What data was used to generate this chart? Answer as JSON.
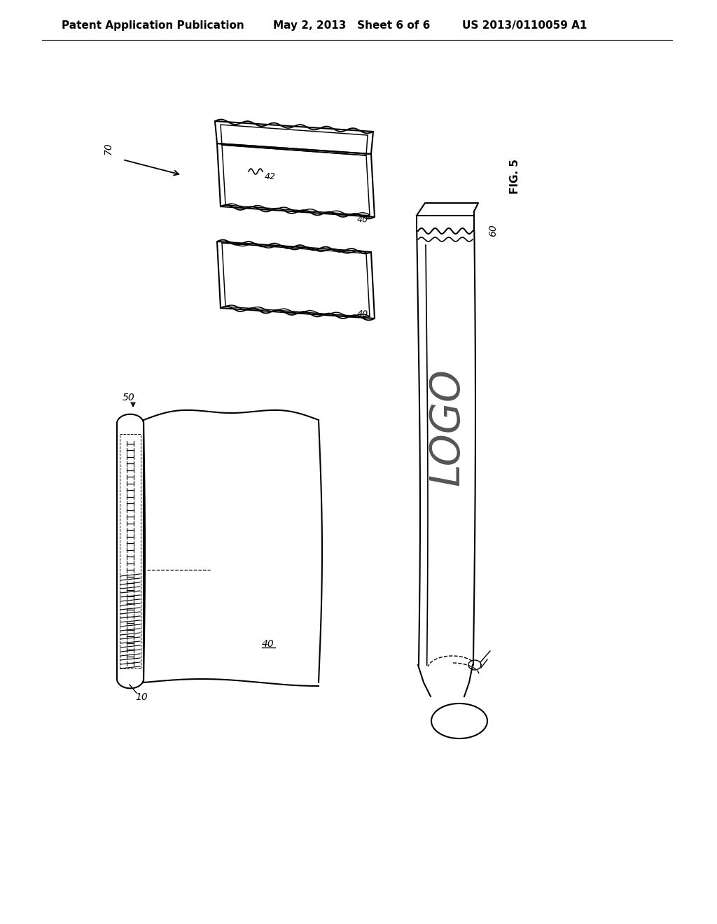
{
  "background_color": "#ffffff",
  "header_left": "Patent Application Publication",
  "header_middle": "May 2, 2013   Sheet 6 of 6",
  "header_right": "US 2013/0110059 A1",
  "header_fontsize": 11,
  "fig_label": "FIG. 5",
  "line_color": "#000000",
  "line_width": 1.5,
  "label_fontsize": 10,
  "logo_fontsize": 42
}
